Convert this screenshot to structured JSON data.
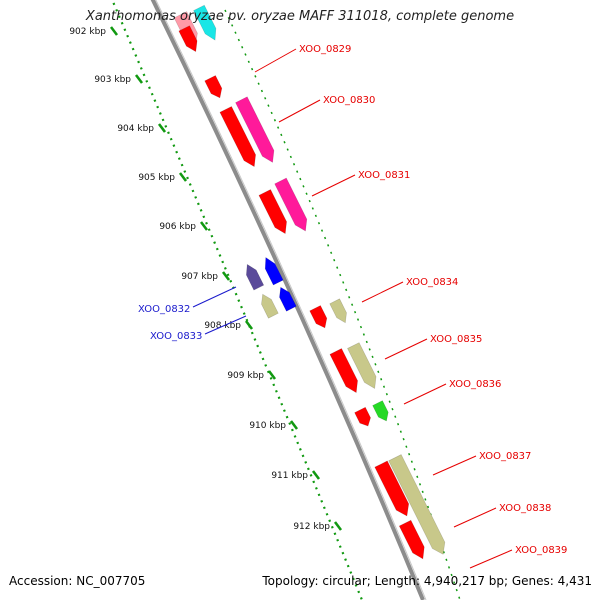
{
  "title": "Xanthomonas oryzae pv. oryzae MAFF 311018, complete genome",
  "footer": {
    "accession": "Accession: NC_007705",
    "topology": "Topology: circular; Length: 4,940,217 bp; Genes: 4,431"
  },
  "colors": {
    "backbone": "#8c8c8c",
    "tick_track": "#119911",
    "label_right": "#e60000",
    "label_left": "#1a1acc",
    "red": "#ff0000",
    "magenta": "#ff1a9a",
    "cyan": "#19e6e6",
    "pink": "#ff9aa8",
    "navy": "#5a4a9a",
    "blue": "#0000ff",
    "khaki": "#c8c88a",
    "green": "#26d926"
  },
  "ticks": [
    "902 kbp",
    "903 kbp",
    "904 kbp",
    "905 kbp",
    "906 kbp",
    "907 kbp",
    "908 kbp",
    "909 kbp",
    "910 kbp",
    "911 kbp",
    "912 kbp"
  ],
  "gene_labels": {
    "right": [
      "XOO_0829",
      "XOO_0830",
      "XOO_0831",
      "XOO_0834",
      "XOO_0835",
      "XOO_0836",
      "XOO_0837",
      "XOO_0838",
      "XOO_0839"
    ],
    "left": [
      "XOO_0832",
      "XOO_0833"
    ]
  },
  "genes": [
    {
      "color": "pink",
      "strand": "minus"
    },
    {
      "color": "cyan",
      "strand": "minus"
    },
    {
      "color": "red",
      "strand": "minus"
    },
    {
      "color": "red",
      "strand": "minus"
    },
    {
      "color": "red",
      "strand": "minus"
    },
    {
      "color": "magenta",
      "strand": "minus"
    },
    {
      "color": "red",
      "strand": "minus"
    },
    {
      "color": "magenta",
      "strand": "minus"
    },
    {
      "color": "navy",
      "strand": "plus"
    },
    {
      "color": "blue",
      "strand": "plus"
    },
    {
      "color": "khaki",
      "strand": "plus"
    },
    {
      "color": "blue",
      "strand": "plus"
    },
    {
      "color": "red",
      "strand": "minus"
    },
    {
      "color": "khaki",
      "strand": "minus"
    },
    {
      "color": "red",
      "strand": "minus"
    },
    {
      "color": "khaki",
      "strand": "minus"
    },
    {
      "color": "red",
      "strand": "minus"
    },
    {
      "color": "green",
      "strand": "minus"
    },
    {
      "color": "red",
      "strand": "minus"
    },
    {
      "color": "khaki",
      "strand": "minus"
    },
    {
      "color": "red",
      "strand": "minus"
    }
  ]
}
